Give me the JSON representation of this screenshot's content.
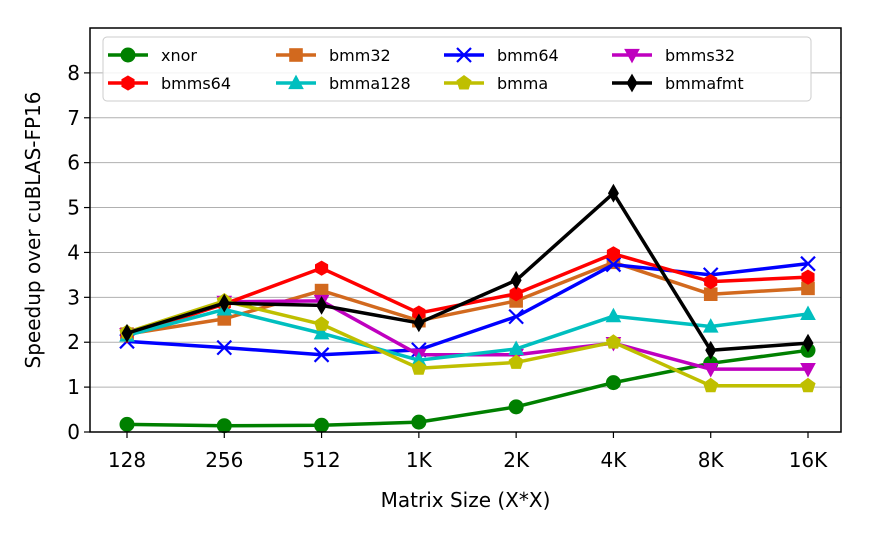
{
  "chart_data": {
    "type": "line",
    "title": "",
    "xlabel": "Matrix Size (X*X)",
    "ylabel": "Speedup over cuBLAS-FP16",
    "categories": [
      "128",
      "256",
      "512",
      "1K",
      "2K",
      "4K",
      "8K",
      "16K"
    ],
    "yticks": [
      0,
      1,
      2,
      3,
      4,
      5,
      6,
      7,
      8
    ],
    "ylim": [
      0,
      9
    ],
    "grid": "y",
    "legend_position": "top",
    "series": [
      {
        "name": "xnor",
        "color": "#008000",
        "marker": "circle",
        "values": [
          0.17,
          0.14,
          0.15,
          0.22,
          0.56,
          1.1,
          1.53,
          1.82
        ]
      },
      {
        "name": "bmm32",
        "color": "#d2691e",
        "marker": "square",
        "values": [
          2.18,
          2.52,
          3.15,
          2.48,
          2.92,
          3.78,
          3.07,
          3.2
        ]
      },
      {
        "name": "bmm64",
        "color": "#0000ff",
        "marker": "x",
        "values": [
          2.02,
          1.88,
          1.72,
          1.83,
          2.57,
          3.73,
          3.5,
          3.75
        ]
      },
      {
        "name": "bmms32",
        "color": "#bf00bf",
        "marker": "triangle-down",
        "values": [
          2.18,
          2.9,
          2.92,
          1.72,
          1.72,
          1.98,
          1.4,
          1.4
        ]
      },
      {
        "name": "bmms64",
        "color": "#ff0000",
        "marker": "hexagon",
        "values": [
          2.15,
          2.85,
          3.65,
          2.65,
          3.08,
          3.97,
          3.35,
          3.45
        ]
      },
      {
        "name": "bmma128",
        "color": "#00bfbf",
        "marker": "triangle-up",
        "values": [
          2.15,
          2.73,
          2.2,
          1.6,
          1.85,
          2.58,
          2.35,
          2.63
        ]
      },
      {
        "name": "bmma",
        "color": "#bfbf00",
        "marker": "pentagon",
        "values": [
          2.22,
          2.92,
          2.4,
          1.42,
          1.55,
          2.0,
          1.03,
          1.03
        ]
      },
      {
        "name": "bmmafmt",
        "color": "#000000",
        "marker": "diamond",
        "values": [
          2.2,
          2.87,
          2.82,
          2.43,
          3.38,
          5.32,
          1.82,
          1.98
        ]
      }
    ]
  }
}
